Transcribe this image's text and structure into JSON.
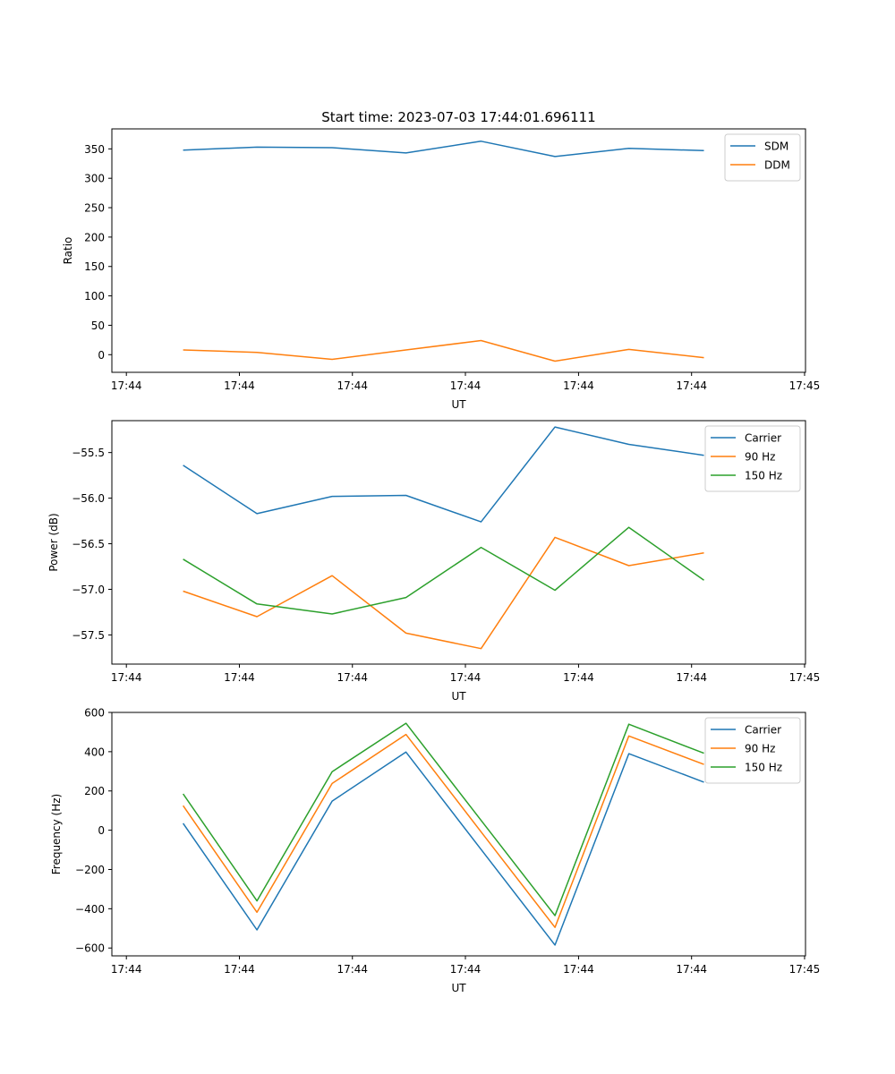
{
  "chart_data": [
    {
      "type": "line",
      "title": "Start time: 2023-07-03 17:44:01.696111",
      "xlabel": "UT",
      "ylabel": "Ratio",
      "xlim": [
        -0.11,
        5.15
      ],
      "ylim": [
        -30,
        384
      ],
      "x_ticks": [
        0,
        0.857,
        1.714,
        2.571,
        3.429,
        4.286,
        5.143
      ],
      "x_tick_labels": [
        "17:44",
        "17:44",
        "17:44",
        "17:44",
        "17:44",
        "17:44",
        "17:45"
      ],
      "y_ticks": [
        0,
        50,
        100,
        150,
        200,
        250,
        300,
        350
      ],
      "y_tick_labels": [
        "0",
        "50",
        "100",
        "150",
        "200",
        "250",
        "300",
        "350"
      ],
      "x": [
        0.43,
        0.99,
        1.56,
        2.12,
        2.69,
        3.25,
        3.81,
        4.38
      ],
      "legend_position": "upper right",
      "series": [
        {
          "name": "SDM",
          "color": "#1f77b4",
          "values": [
            348,
            353,
            352,
            343,
            363,
            337,
            351,
            347
          ]
        },
        {
          "name": "DDM",
          "color": "#ff7f0e",
          "values": [
            8,
            4,
            -8,
            8,
            24,
            -11,
            9,
            -5
          ]
        }
      ]
    },
    {
      "type": "line",
      "title": "",
      "xlabel": "UT",
      "ylabel": "Power (dB)",
      "xlim": [
        -0.11,
        5.15
      ],
      "ylim": [
        -57.82,
        -55.15
      ],
      "x_ticks": [
        0,
        0.857,
        1.714,
        2.571,
        3.429,
        4.286,
        5.143
      ],
      "x_tick_labels": [
        "17:44",
        "17:44",
        "17:44",
        "17:44",
        "17:44",
        "17:44",
        "17:45"
      ],
      "y_ticks": [
        -57.5,
        -57.0,
        -56.5,
        -56.0,
        -55.5
      ],
      "y_tick_labels": [
        "−57.5",
        "−57.0",
        "−56.5",
        "−56.0",
        "−55.5"
      ],
      "x": [
        0.43,
        0.99,
        1.56,
        2.12,
        2.69,
        3.25,
        3.81,
        4.38
      ],
      "legend_position": "upper right",
      "series": [
        {
          "name": "Carrier",
          "color": "#1f77b4",
          "values": [
            -55.64,
            -56.17,
            -55.98,
            -55.97,
            -56.26,
            -55.22,
            -55.41,
            -55.53
          ]
        },
        {
          "name": "90 Hz",
          "color": "#ff7f0e",
          "values": [
            -57.02,
            -57.3,
            -56.85,
            -57.48,
            -57.65,
            -56.43,
            -56.74,
            -56.6
          ]
        },
        {
          "name": "150 Hz",
          "color": "#2ca02c",
          "values": [
            -56.67,
            -57.16,
            -57.27,
            -57.09,
            -56.54,
            -57.01,
            -56.32,
            -56.9
          ]
        }
      ]
    },
    {
      "type": "line",
      "title": "",
      "xlabel": "UT",
      "ylabel": "Frequency (Hz)",
      "xlim": [
        -0.11,
        5.15
      ],
      "ylim": [
        -640,
        600
      ],
      "x_ticks": [
        0,
        0.857,
        1.714,
        2.571,
        3.429,
        4.286,
        5.143
      ],
      "x_tick_labels": [
        "17:44",
        "17:44",
        "17:44",
        "17:44",
        "17:44",
        "17:44",
        "17:45"
      ],
      "y_ticks": [
        -600,
        -400,
        -200,
        0,
        200,
        400,
        600
      ],
      "y_tick_labels": [
        "−600",
        "−400",
        "−200",
        "0",
        "200",
        "400",
        "600"
      ],
      "x": [
        0.43,
        0.99,
        1.56,
        2.12,
        2.69,
        3.25,
        3.81,
        4.38
      ],
      "legend_position": "upper right",
      "series": [
        {
          "name": "Carrier",
          "color": "#1f77b4",
          "values": [
            35,
            -508,
            148,
            398,
            -98,
            -585,
            390,
            245
          ]
        },
        {
          "name": "90 Hz",
          "color": "#ff7f0e",
          "values": [
            125,
            -418,
            238,
            488,
            -8,
            -495,
            480,
            335
          ]
        },
        {
          "name": "150 Hz",
          "color": "#2ca02c",
          "values": [
            185,
            -360,
            298,
            545,
            50,
            -435,
            540,
            392
          ]
        }
      ]
    }
  ]
}
